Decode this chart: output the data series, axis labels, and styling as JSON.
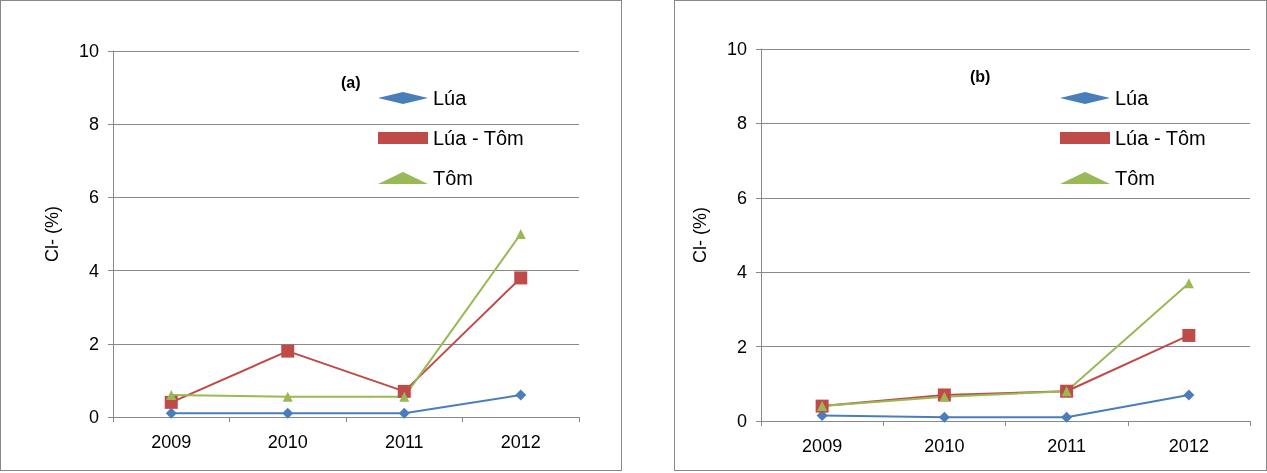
{
  "chart_data": [
    {
      "type": "line",
      "title": "(a)",
      "ylabel": "Cl- (%)",
      "categories": [
        "2009",
        "2010",
        "2011",
        "2012"
      ],
      "ylim": [
        0,
        10
      ],
      "yticks": [
        0,
        2,
        4,
        6,
        8,
        10
      ],
      "grid": "y",
      "legend": "top right",
      "series": [
        {
          "name": "Lúa",
          "color": "#4a7ebb",
          "marker": "diamond",
          "values": [
            0.1,
            0.1,
            0.1,
            0.6
          ]
        },
        {
          "name": "Lúa - Tôm",
          "color": "#be4b48",
          "marker": "square",
          "values": [
            0.4,
            1.8,
            0.7,
            3.8
          ]
        },
        {
          "name": "Tôm",
          "color": "#98b954",
          "marker": "triangle",
          "values": [
            0.6,
            0.55,
            0.55,
            5.0
          ]
        }
      ]
    },
    {
      "type": "line",
      "title": "(b)",
      "ylabel": "Cl- (%)",
      "categories": [
        "2009",
        "2010",
        "2011",
        "2012"
      ],
      "ylim": [
        0,
        10
      ],
      "yticks": [
        0,
        2,
        4,
        6,
        8,
        10
      ],
      "grid": "y",
      "legend": "top right",
      "series": [
        {
          "name": "Lúa",
          "color": "#4a7ebb",
          "marker": "diamond",
          "values": [
            0.15,
            0.1,
            0.1,
            0.7
          ]
        },
        {
          "name": "Lúa - Tôm",
          "color": "#be4b48",
          "marker": "square",
          "values": [
            0.4,
            0.7,
            0.8,
            2.3
          ]
        },
        {
          "name": "Tôm",
          "color": "#98b954",
          "marker": "triangle",
          "values": [
            0.4,
            0.65,
            0.8,
            3.7
          ]
        }
      ]
    }
  ]
}
